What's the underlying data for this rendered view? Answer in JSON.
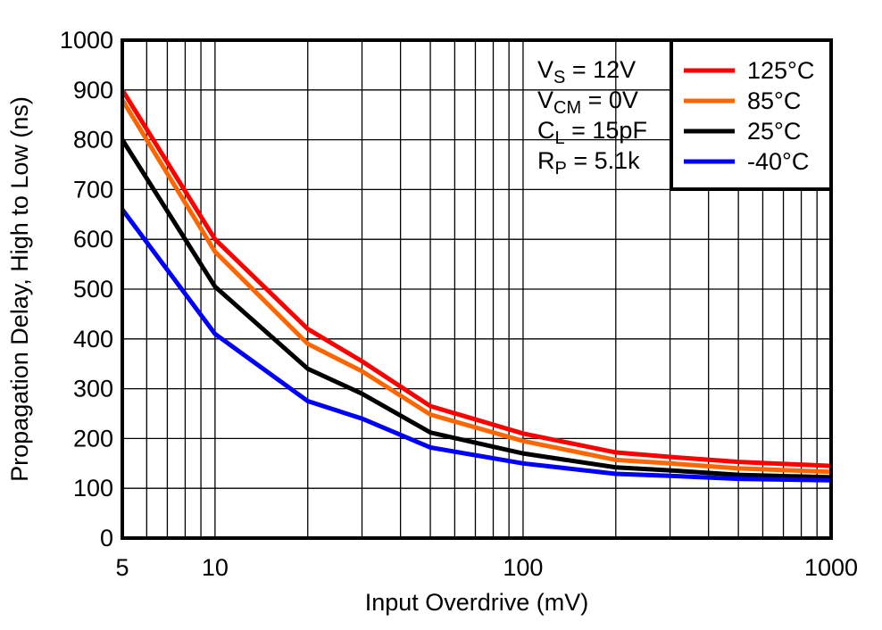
{
  "chart_data": {
    "type": "line",
    "title": "",
    "xlabel": "Input Overdrive (mV)",
    "ylabel": "Propagation Delay, High to Low (ns)",
    "x_scale": "log",
    "xlim": [
      5,
      1000
    ],
    "ylim": [
      0,
      1000
    ],
    "y_tick_step": 100,
    "x_tick_values": [
      5,
      10,
      100,
      1000
    ],
    "x_tick_labels": [
      "5",
      "10",
      "100",
      "1000"
    ],
    "grid": true,
    "legend_position": "top-right",
    "frame_color": "#000000",
    "grid_color": "#000000",
    "x": [
      5,
      10,
      20,
      30,
      50,
      100,
      200,
      300,
      500,
      1000
    ],
    "series": [
      {
        "name": "125°C",
        "color": "#ff0000",
        "values": [
          900,
          600,
          420,
          355,
          265,
          210,
          172,
          163,
          153,
          145
        ]
      },
      {
        "name": "85°C",
        "color": "#ff6600",
        "values": [
          880,
          575,
          390,
          335,
          248,
          195,
          157,
          150,
          140,
          133
        ]
      },
      {
        "name": "25°C",
        "color": "#000000",
        "values": [
          800,
          505,
          340,
          290,
          212,
          170,
          142,
          136,
          127,
          122
        ]
      },
      {
        "name": "-40°C",
        "color": "#0000ff",
        "values": [
          660,
          410,
          275,
          240,
          182,
          150,
          129,
          125,
          119,
          116
        ]
      }
    ],
    "conditions": [
      {
        "base": "V",
        "sub": "S",
        "rest": " = 12V"
      },
      {
        "base": "V",
        "sub": "CM",
        "rest": " = 0V"
      },
      {
        "base": "C",
        "sub": "L",
        "rest": " = 15pF"
      },
      {
        "base": "R",
        "sub": "P",
        "rest": " = 5.1k"
      }
    ]
  }
}
